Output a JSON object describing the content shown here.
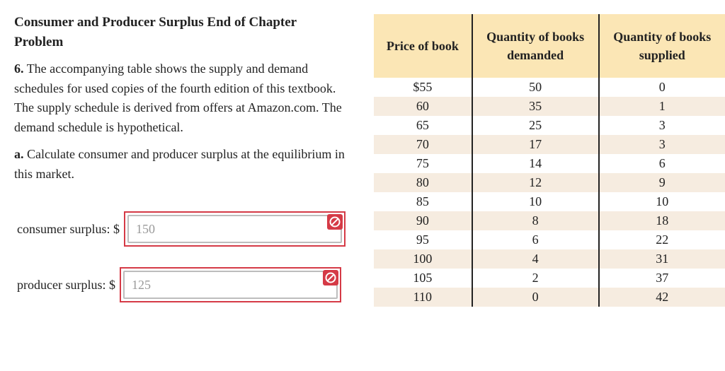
{
  "problem": {
    "title": "Consumer and Producer Surplus End of Chapter Problem",
    "q_number": "6.",
    "q_text": "The accompanying table shows the supply and demand schedules for used copies of the fourth edition of this textbook. The supply schedule is derived from offers at Amazon.com. The demand schedule is hypothetical.",
    "part_label": "a.",
    "part_text": "Calculate consumer and producer surplus at the equilibrium in this market."
  },
  "answers": {
    "consumer": {
      "label": "consumer surplus: $",
      "value": "150",
      "status": "incorrect"
    },
    "producer": {
      "label": "producer surplus: $",
      "value": "125",
      "status": "incorrect"
    }
  },
  "colors": {
    "error": "#d53a46",
    "header_bg": "#fbe6b5",
    "stripe_bg": "#f6ece0"
  },
  "table": {
    "headers": [
      "Price of book",
      "Quantity of books demanded",
      "Quantity of books supplied"
    ],
    "rows": [
      [
        "$55",
        "50",
        "0"
      ],
      [
        "60",
        "35",
        "1"
      ],
      [
        "65",
        "25",
        "3"
      ],
      [
        "70",
        "17",
        "3"
      ],
      [
        "75",
        "14",
        "6"
      ],
      [
        "80",
        "12",
        "9"
      ],
      [
        "85",
        "10",
        "10"
      ],
      [
        "90",
        "8",
        "18"
      ],
      [
        "95",
        "6",
        "22"
      ],
      [
        "100",
        "4",
        "31"
      ],
      [
        "105",
        "2",
        "37"
      ],
      [
        "110",
        "0",
        "42"
      ]
    ]
  }
}
